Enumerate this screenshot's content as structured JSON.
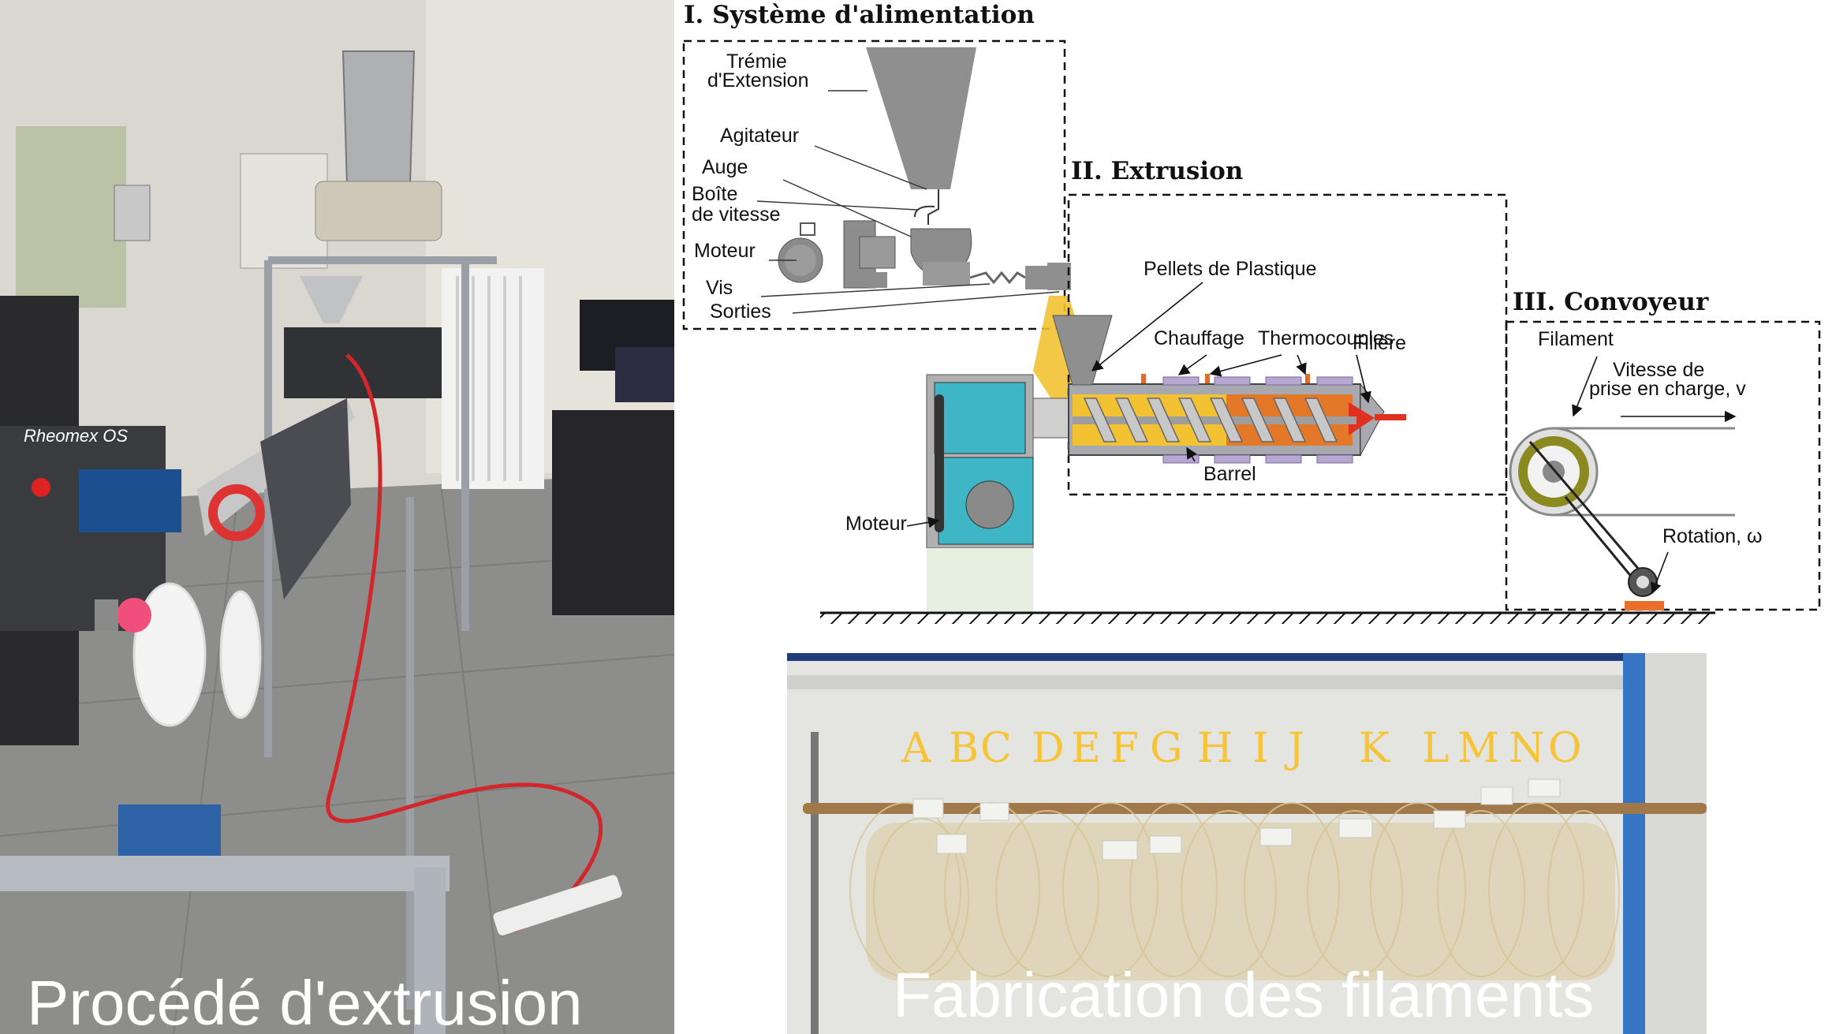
{
  "captions": {
    "left": "Procédé d'extrusion",
    "bottom": "Fabrication des filaments"
  },
  "left_photo": {
    "machine_label": "Rheomex OS"
  },
  "filament_letters": [
    "A",
    "B",
    "C",
    "D",
    "E",
    "F",
    "G",
    "H",
    "I",
    "J",
    "K",
    "L",
    "M",
    "N",
    "O"
  ],
  "diagram": {
    "section1": {
      "title": "I. Système d'alimentation",
      "labels": {
        "tremie_line1": "Trémie",
        "tremie_line2": "d'Extension",
        "agitateur": "Agitateur",
        "auge": "Auge",
        "boite_line1": "Boîte",
        "boite_line2": "de vitesse",
        "moteur": "Moteur",
        "vis": "Vis",
        "sorties": "Sorties"
      }
    },
    "section2": {
      "title": "II. Extrusion",
      "labels": {
        "pellets": "Pellets de Plastique",
        "chauffage": "Chauffage",
        "thermocouples": "Thermocouples",
        "filiere": "Filière",
        "barrel": "Barrel",
        "moteur": "Moteur"
      }
    },
    "section3": {
      "title": "III.  Convoyeur",
      "labels": {
        "filament": "Filament",
        "vitesse_line1": "Vitesse de",
        "vitesse_line2": "prise en charge, v",
        "rotation": "Rotation, ω"
      }
    },
    "colors": {
      "pellets": "#f2c232",
      "screw": "#c0c0c0",
      "barrel": "#a8a8b0",
      "heaters": "#b7a6cf",
      "filament": "#e03020",
      "motor_housing": "#3fb6c6",
      "conveyor_roller": "#8a8a20",
      "pad": "#e8702a"
    }
  }
}
